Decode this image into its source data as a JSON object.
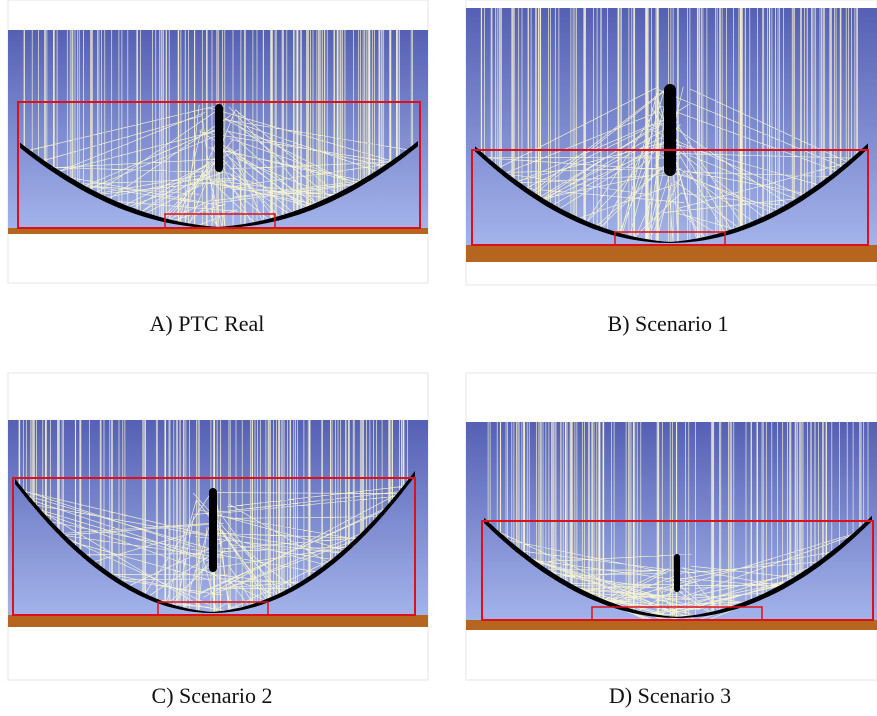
{
  "panels": [
    {
      "caption": "A) PTC Real"
    },
    {
      "caption": "B) Scenario 1"
    },
    {
      "caption": "C) Scenario 2"
    },
    {
      "caption": "D) Scenario 3"
    }
  ]
}
